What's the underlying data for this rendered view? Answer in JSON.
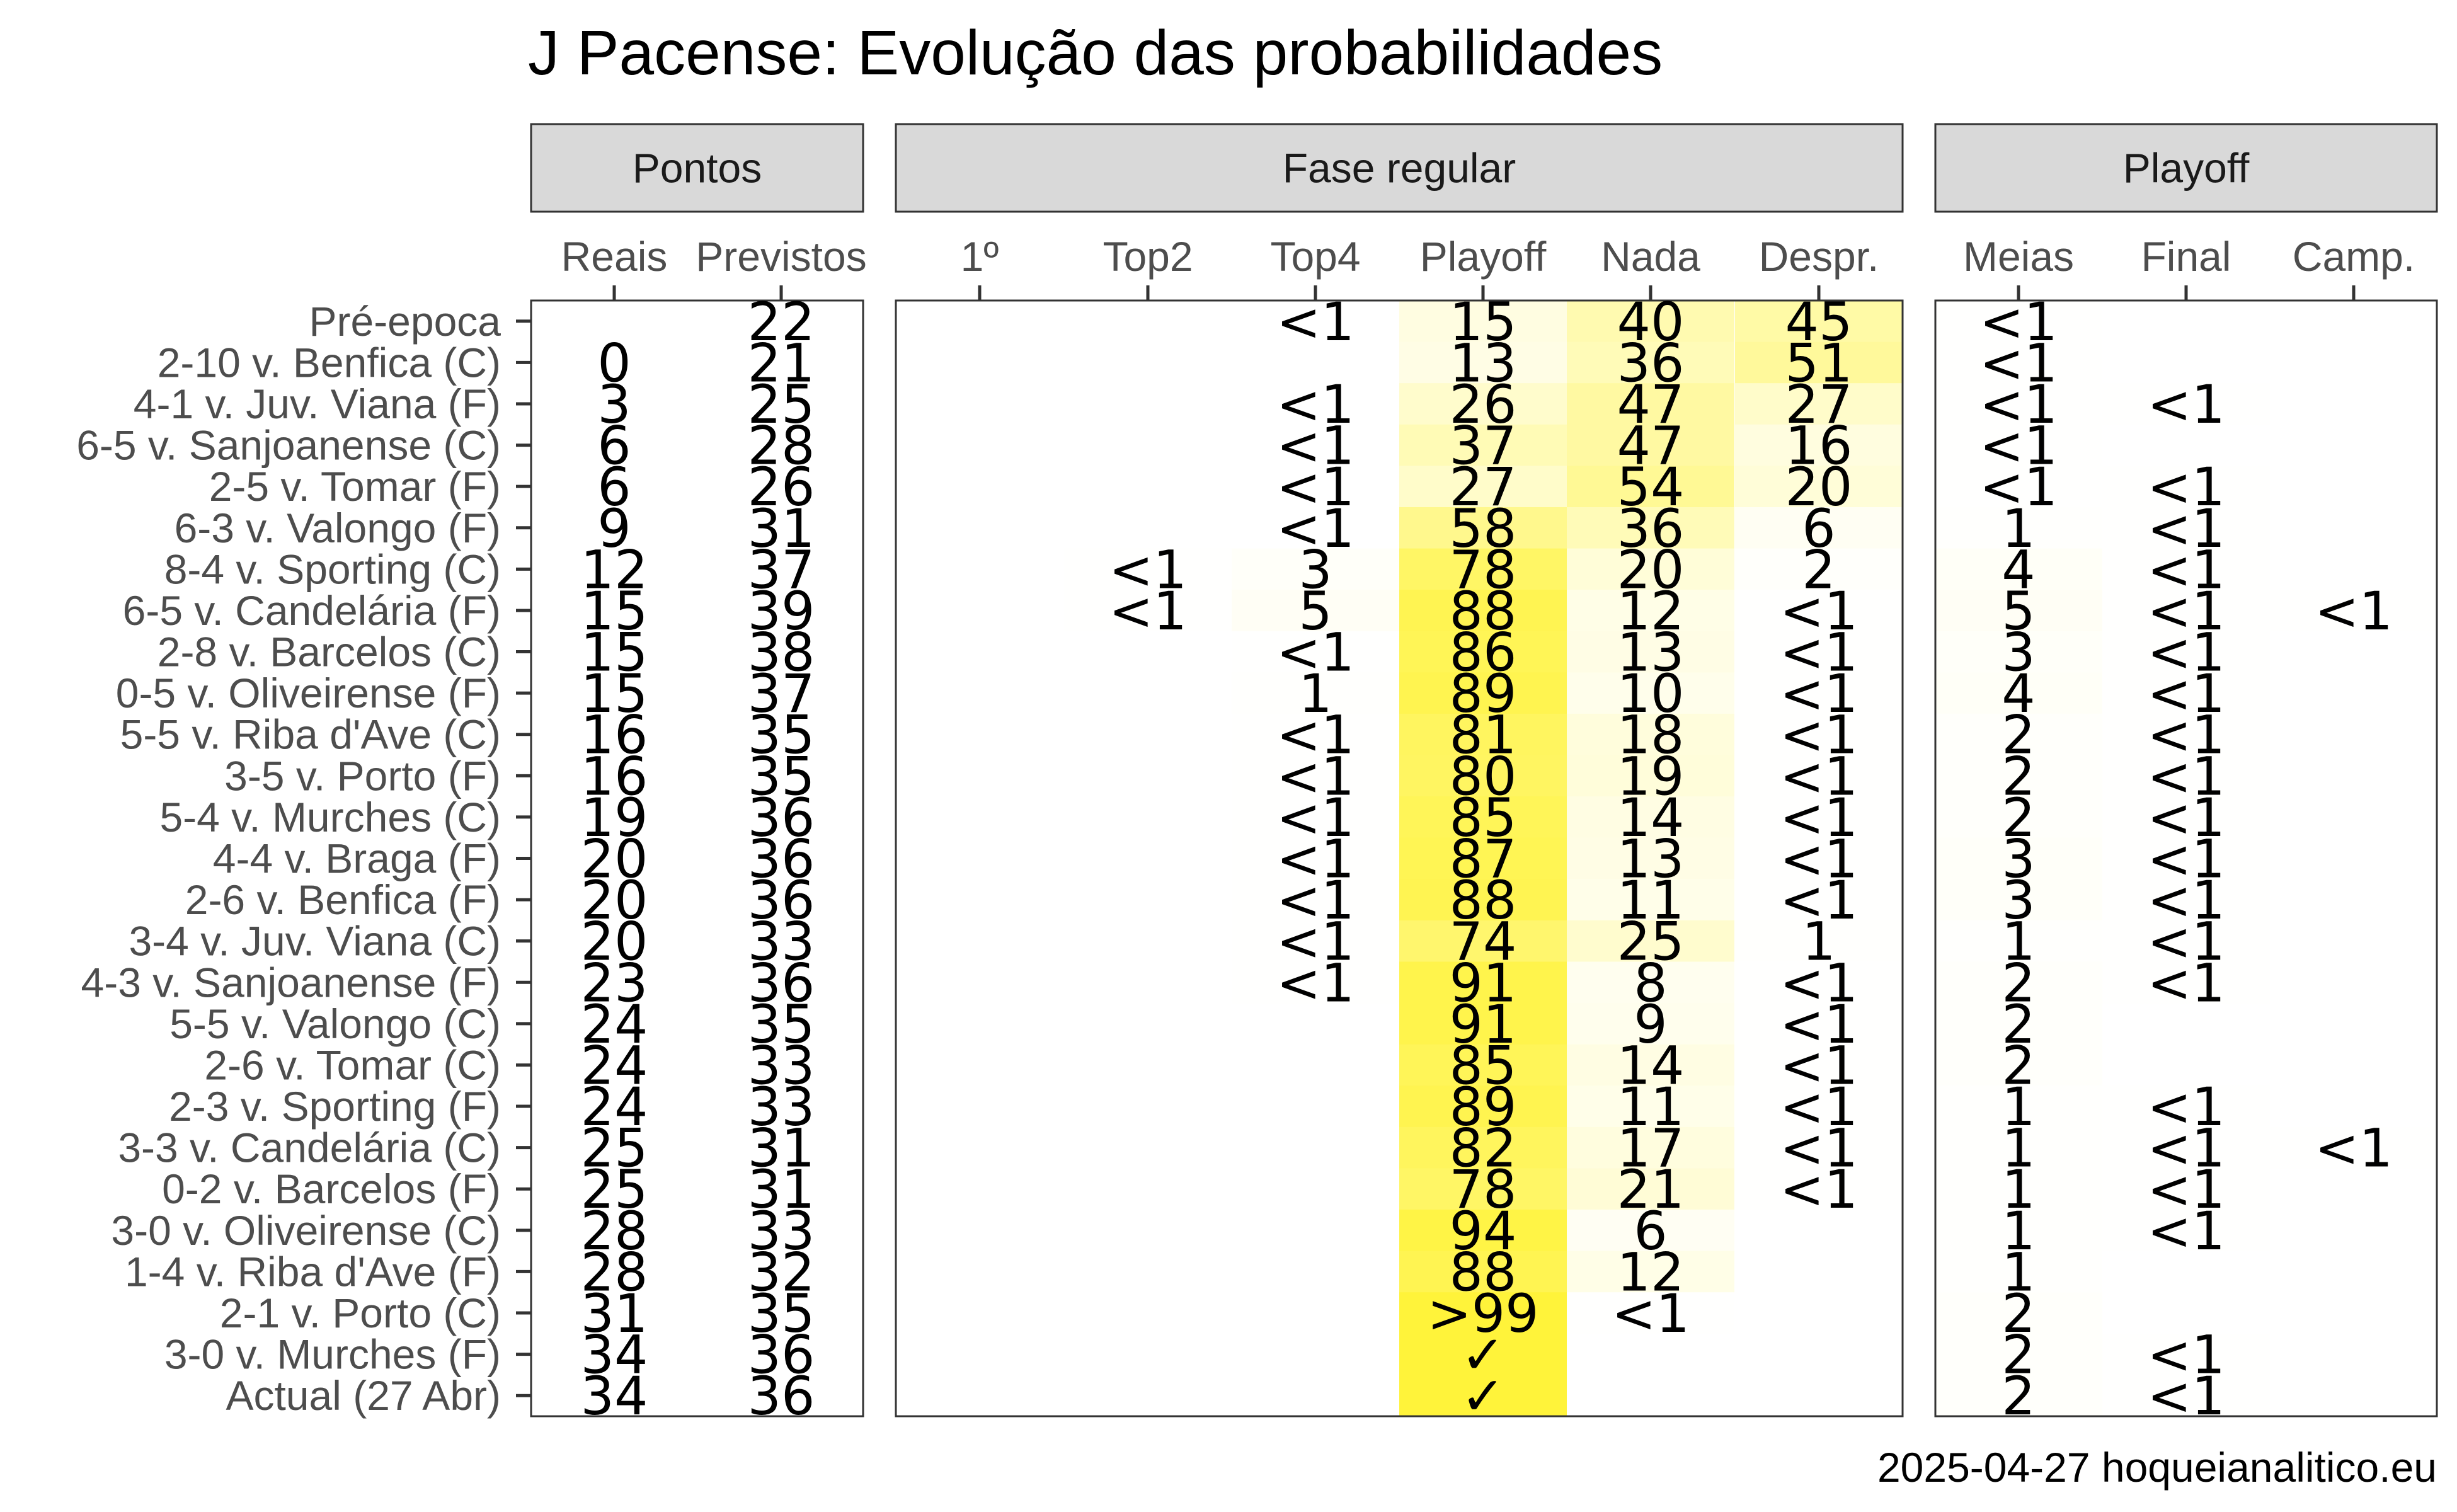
{
  "title": "J Pacense: Evolução das probabilidades",
  "caption": "2025-04-27 hoqueianalitico.eu",
  "colors": {
    "panel_border": "#333333",
    "strip_fill": "#d9d9d9",
    "low": "#ffffff",
    "high": "#fff33a"
  },
  "chart_data": {
    "type": "heatmap",
    "panels": [
      {
        "key": "pontos",
        "label": "Pontos",
        "columns": [
          "Reais",
          "Previstos"
        ]
      },
      {
        "key": "fase",
        "label": "Fase regular",
        "columns": [
          "1º",
          "Top2",
          "Top4",
          "Playoff",
          "Nada",
          "Despr."
        ]
      },
      {
        "key": "playoff",
        "label": "Playoff",
        "columns": [
          "Meias",
          "Final",
          "Camp."
        ]
      }
    ],
    "rows": [
      "Pré-epoca",
      "2-10 v. Benfica (C)",
      "4-1 v. Juv. Viana (F)",
      "6-5 v. Sanjoanense (C)",
      "2-5 v. Tomar (F)",
      "6-3 v. Valongo (F)",
      "8-4 v. Sporting (C)",
      "6-5 v. Candelária (F)",
      "2-8 v. Barcelos (C)",
      "0-5 v. Oliveirense (F)",
      "5-5 v. Riba d'Ave (C)",
      "3-5 v. Porto (F)",
      "5-4 v. Murches (C)",
      "4-4 v. Braga (F)",
      "2-6 v. Benfica (F)",
      "3-4 v. Juv. Viana (C)",
      "4-3 v. Sanjoanense (F)",
      "5-5 v. Valongo (C)",
      "2-6 v. Tomar (C)",
      "2-3 v. Sporting (F)",
      "3-3 v. Candelária (C)",
      "0-2 v. Barcelos (F)",
      "3-0 v. Oliveirense (C)",
      "1-4 v. Riba d'Ave (F)",
      "2-1 v. Porto (C)",
      "3-0 v. Murches (F)",
      "Actual (27 Abr)"
    ],
    "labels": {
      "pontos": [
        [
          "",
          "22"
        ],
        [
          "0",
          "21"
        ],
        [
          "3",
          "25"
        ],
        [
          "6",
          "28"
        ],
        [
          "6",
          "26"
        ],
        [
          "9",
          "31"
        ],
        [
          "12",
          "37"
        ],
        [
          "15",
          "39"
        ],
        [
          "15",
          "38"
        ],
        [
          "15",
          "37"
        ],
        [
          "16",
          "35"
        ],
        [
          "16",
          "35"
        ],
        [
          "19",
          "36"
        ],
        [
          "20",
          "36"
        ],
        [
          "20",
          "36"
        ],
        [
          "20",
          "33"
        ],
        [
          "23",
          "36"
        ],
        [
          "24",
          "35"
        ],
        [
          "24",
          "33"
        ],
        [
          "24",
          "33"
        ],
        [
          "25",
          "31"
        ],
        [
          "25",
          "31"
        ],
        [
          "28",
          "33"
        ],
        [
          "28",
          "32"
        ],
        [
          "31",
          "35"
        ],
        [
          "34",
          "36"
        ],
        [
          "34",
          "36"
        ]
      ],
      "fase": [
        [
          "",
          "",
          "<1",
          "15",
          "40",
          "45"
        ],
        [
          "",
          "",
          "",
          "13",
          "36",
          "51"
        ],
        [
          "",
          "",
          "<1",
          "26",
          "47",
          "27"
        ],
        [
          "",
          "",
          "<1",
          "37",
          "47",
          "16"
        ],
        [
          "",
          "",
          "<1",
          "27",
          "54",
          "20"
        ],
        [
          "",
          "",
          "<1",
          "58",
          "36",
          "6"
        ],
        [
          "",
          "<1",
          "3",
          "78",
          "20",
          "2"
        ],
        [
          "",
          "<1",
          "5",
          "88",
          "12",
          "<1"
        ],
        [
          "",
          "",
          "<1",
          "86",
          "13",
          "<1"
        ],
        [
          "",
          "",
          "1",
          "89",
          "10",
          "<1"
        ],
        [
          "",
          "",
          "<1",
          "81",
          "18",
          "<1"
        ],
        [
          "",
          "",
          "<1",
          "80",
          "19",
          "<1"
        ],
        [
          "",
          "",
          "<1",
          "85",
          "14",
          "<1"
        ],
        [
          "",
          "",
          "<1",
          "87",
          "13",
          "<1"
        ],
        [
          "",
          "",
          "<1",
          "88",
          "11",
          "<1"
        ],
        [
          "",
          "",
          "<1",
          "74",
          "25",
          "1"
        ],
        [
          "",
          "",
          "<1",
          "91",
          "8",
          "<1"
        ],
        [
          "",
          "",
          "",
          "91",
          "9",
          "<1"
        ],
        [
          "",
          "",
          "",
          "85",
          "14",
          "<1"
        ],
        [
          "",
          "",
          "",
          "89",
          "11",
          "<1"
        ],
        [
          "",
          "",
          "",
          "82",
          "17",
          "<1"
        ],
        [
          "",
          "",
          "",
          "78",
          "21",
          "<1"
        ],
        [
          "",
          "",
          "",
          "94",
          "6",
          ""
        ],
        [
          "",
          "",
          "",
          "88",
          "12",
          ""
        ],
        [
          "",
          "",
          "",
          ">99",
          "<1",
          ""
        ],
        [
          "",
          "",
          "",
          "✓",
          "",
          ""
        ],
        [
          "",
          "",
          "",
          "✓",
          "",
          ""
        ]
      ],
      "playoff": [
        [
          "<1",
          "",
          ""
        ],
        [
          "<1",
          "",
          ""
        ],
        [
          "<1",
          "<1",
          ""
        ],
        [
          "<1",
          "",
          ""
        ],
        [
          "<1",
          "<1",
          ""
        ],
        [
          "1",
          "<1",
          ""
        ],
        [
          "4",
          "<1",
          ""
        ],
        [
          "5",
          "<1",
          "<1"
        ],
        [
          "3",
          "<1",
          ""
        ],
        [
          "4",
          "<1",
          ""
        ],
        [
          "2",
          "<1",
          ""
        ],
        [
          "2",
          "<1",
          ""
        ],
        [
          "2",
          "<1",
          ""
        ],
        [
          "3",
          "<1",
          ""
        ],
        [
          "3",
          "<1",
          ""
        ],
        [
          "1",
          "<1",
          ""
        ],
        [
          "2",
          "<1",
          ""
        ],
        [
          "2",
          "",
          ""
        ],
        [
          "2",
          "",
          ""
        ],
        [
          "1",
          "<1",
          ""
        ],
        [
          "1",
          "<1",
          "<1"
        ],
        [
          "1",
          "<1",
          ""
        ],
        [
          "1",
          "<1",
          ""
        ],
        [
          "1",
          "",
          ""
        ],
        [
          "2",
          "",
          ""
        ],
        [
          "2",
          "<1",
          ""
        ],
        [
          "2",
          "<1",
          ""
        ]
      ]
    },
    "fill_values": {
      "fase": [
        [
          0,
          0,
          0,
          15,
          40,
          45
        ],
        [
          0,
          0,
          0,
          13,
          36,
          51
        ],
        [
          0,
          0,
          0,
          26,
          47,
          27
        ],
        [
          0,
          0,
          0,
          37,
          47,
          16
        ],
        [
          0,
          0,
          0,
          27,
          54,
          20
        ],
        [
          0,
          0,
          0,
          58,
          36,
          6
        ],
        [
          0,
          0.3,
          3,
          78,
          20,
          2
        ],
        [
          0,
          0.3,
          5,
          88,
          12,
          0.3
        ],
        [
          0,
          0,
          0.3,
          86,
          13,
          0.3
        ],
        [
          0,
          0,
          1,
          89,
          10,
          0.3
        ],
        [
          0,
          0,
          0.3,
          81,
          18,
          0.3
        ],
        [
          0,
          0,
          0.3,
          80,
          19,
          0.3
        ],
        [
          0,
          0,
          0.3,
          85,
          14,
          0.3
        ],
        [
          0,
          0,
          0.3,
          87,
          13,
          0.3
        ],
        [
          0,
          0,
          0.3,
          88,
          11,
          0.3
        ],
        [
          0,
          0,
          0.3,
          74,
          25,
          1
        ],
        [
          0,
          0,
          0.3,
          91,
          8,
          0.3
        ],
        [
          0,
          0,
          0,
          91,
          9,
          0.3
        ],
        [
          0,
          0,
          0,
          85,
          14,
          0.3
        ],
        [
          0,
          0,
          0,
          89,
          11,
          0.3
        ],
        [
          0,
          0,
          0,
          82,
          17,
          0.3
        ],
        [
          0,
          0,
          0,
          78,
          21,
          0.3
        ],
        [
          0,
          0,
          0,
          94,
          6,
          0
        ],
        [
          0,
          0,
          0,
          88,
          12,
          0
        ],
        [
          0,
          0,
          0,
          99.9,
          0.3,
          0
        ],
        [
          0,
          0,
          0,
          100,
          0,
          0
        ],
        [
          0,
          0,
          0,
          100,
          0,
          0
        ]
      ],
      "playoff": [
        [
          0.3,
          0,
          0
        ],
        [
          0.3,
          0,
          0
        ],
        [
          0.3,
          0.3,
          0
        ],
        [
          0.3,
          0,
          0
        ],
        [
          0.3,
          0.3,
          0
        ],
        [
          1,
          0.3,
          0
        ],
        [
          4,
          0.3,
          0
        ],
        [
          5,
          0.3,
          0.3
        ],
        [
          3,
          0.3,
          0
        ],
        [
          4,
          0.3,
          0
        ],
        [
          2,
          0.3,
          0
        ],
        [
          2,
          0.3,
          0
        ],
        [
          2,
          0.3,
          0
        ],
        [
          3,
          0.3,
          0
        ],
        [
          3,
          0.3,
          0
        ],
        [
          1,
          0.3,
          0
        ],
        [
          2,
          0.3,
          0
        ],
        [
          2,
          0,
          0
        ],
        [
          2,
          0,
          0
        ],
        [
          1,
          0.3,
          0
        ],
        [
          1,
          0.3,
          0.3
        ],
        [
          1,
          0.3,
          0
        ],
        [
          1,
          0.3,
          0
        ],
        [
          1,
          0,
          0
        ],
        [
          2,
          0,
          0
        ],
        [
          2,
          0.3,
          0
        ],
        [
          2,
          0.3,
          0
        ]
      ]
    }
  }
}
